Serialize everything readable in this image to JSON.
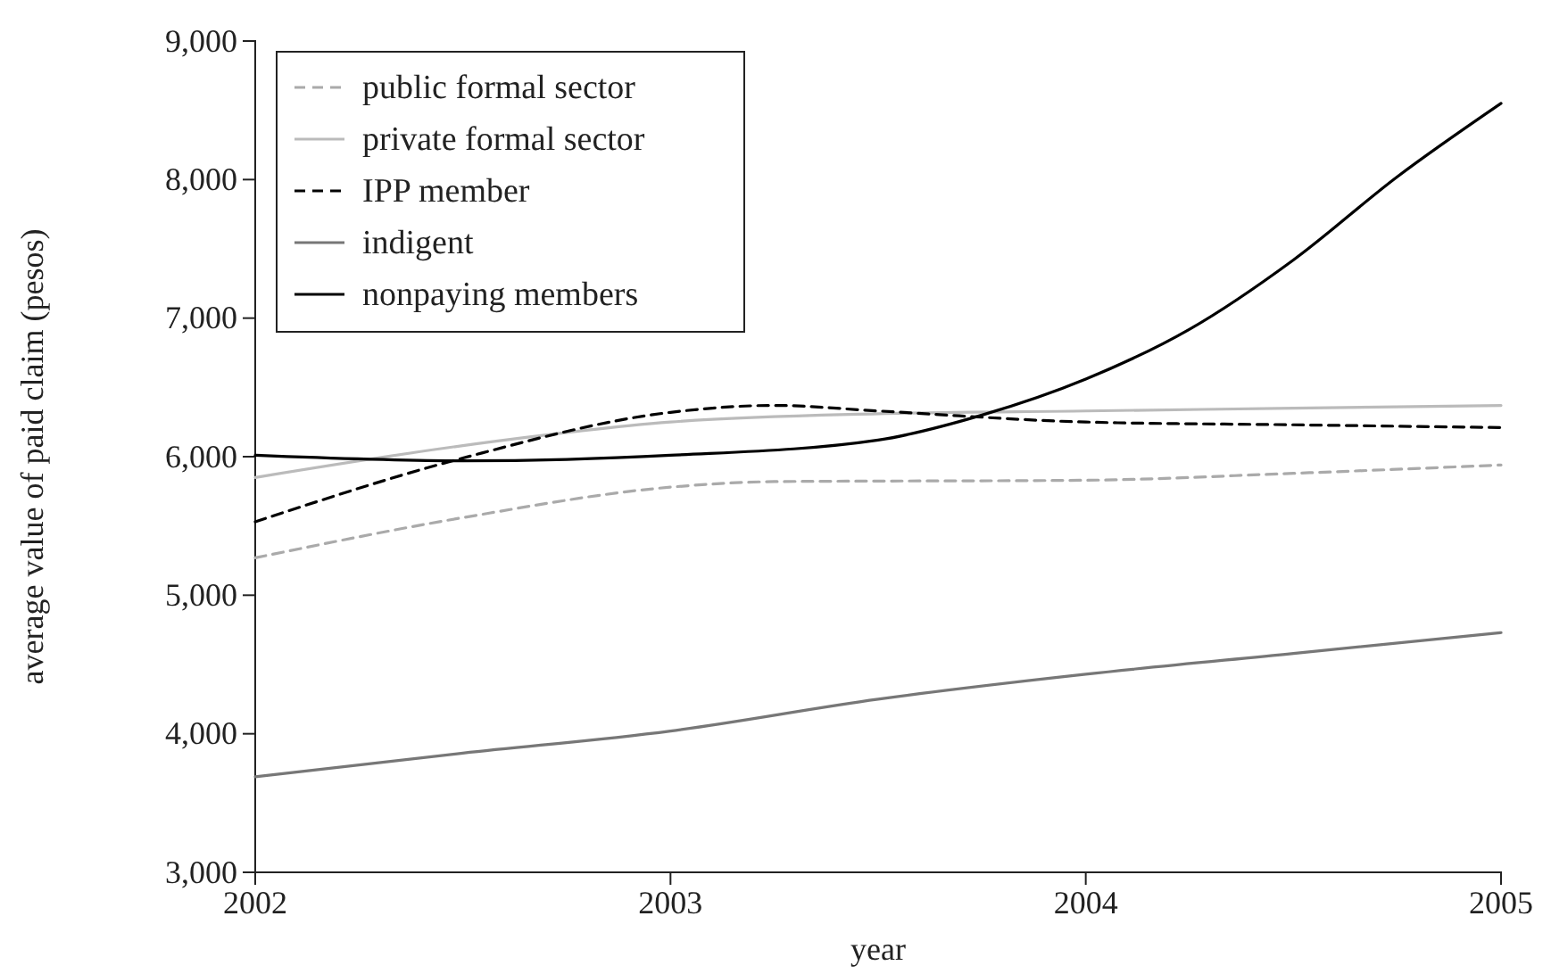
{
  "chart_data": {
    "type": "line",
    "xlabel": "year",
    "ylabel": "average value of paid claim (pesos)",
    "xlim": [
      2002,
      2005
    ],
    "xticks": [
      2002,
      2003,
      2004,
      2005
    ],
    "ylim": [
      3000,
      9000
    ],
    "yticks": [
      {
        "value": 3000,
        "label": "3,000"
      },
      {
        "value": 4000,
        "label": "4,000"
      },
      {
        "value": 5000,
        "label": "5,000"
      },
      {
        "value": 6000,
        "label": "6,000"
      },
      {
        "value": 7000,
        "label": "7,000"
      },
      {
        "value": 8000,
        "label": "8,000"
      },
      {
        "value": 9000,
        "label": "9,000"
      }
    ],
    "legend": "top left",
    "grid": false,
    "marker": "none",
    "series": [
      {
        "name": "public formal sector",
        "color": "#aaaaaa",
        "line_style": "dashed",
        "x": [
          2002,
          2002.5,
          2003,
          2003.25,
          2004,
          2004.5,
          2005
        ],
        "values": [
          5270,
          5560,
          5780,
          5820,
          5830,
          5880,
          5940
        ]
      },
      {
        "name": "private formal sector",
        "color": "#bbbbbb",
        "line_style": "solid",
        "x": [
          2002,
          2002.5,
          2003,
          2003.5,
          2004,
          2004.5,
          2005
        ],
        "values": [
          5850,
          6080,
          6250,
          6310,
          6330,
          6350,
          6370
        ]
      },
      {
        "name": "IPP member",
        "color": "#000000",
        "line_style": "dashed",
        "x": [
          2002,
          2002.5,
          2003,
          2003.25,
          2003.5,
          2004,
          2004.5,
          2005
        ],
        "values": [
          5530,
          5990,
          6320,
          6370,
          6330,
          6250,
          6230,
          6210
        ]
      },
      {
        "name": "indigent",
        "color": "#777777",
        "line_style": "solid",
        "x": [
          2002,
          2002.5,
          2003,
          2003.5,
          2004,
          2004.5,
          2005
        ],
        "values": [
          3690,
          3860,
          4020,
          4250,
          4430,
          4580,
          4730
        ]
      },
      {
        "name": "nonpaying members",
        "color": "#000000",
        "line_style": "solid",
        "x": [
          2002,
          2002.5,
          2002.75,
          2003,
          2003.5,
          2003.75,
          2004,
          2004.25,
          2004.5,
          2004.75,
          2005
        ],
        "values": [
          6010,
          5970,
          5980,
          6010,
          6120,
          6300,
          6560,
          6920,
          7420,
          8020,
          8550
        ]
      }
    ]
  }
}
